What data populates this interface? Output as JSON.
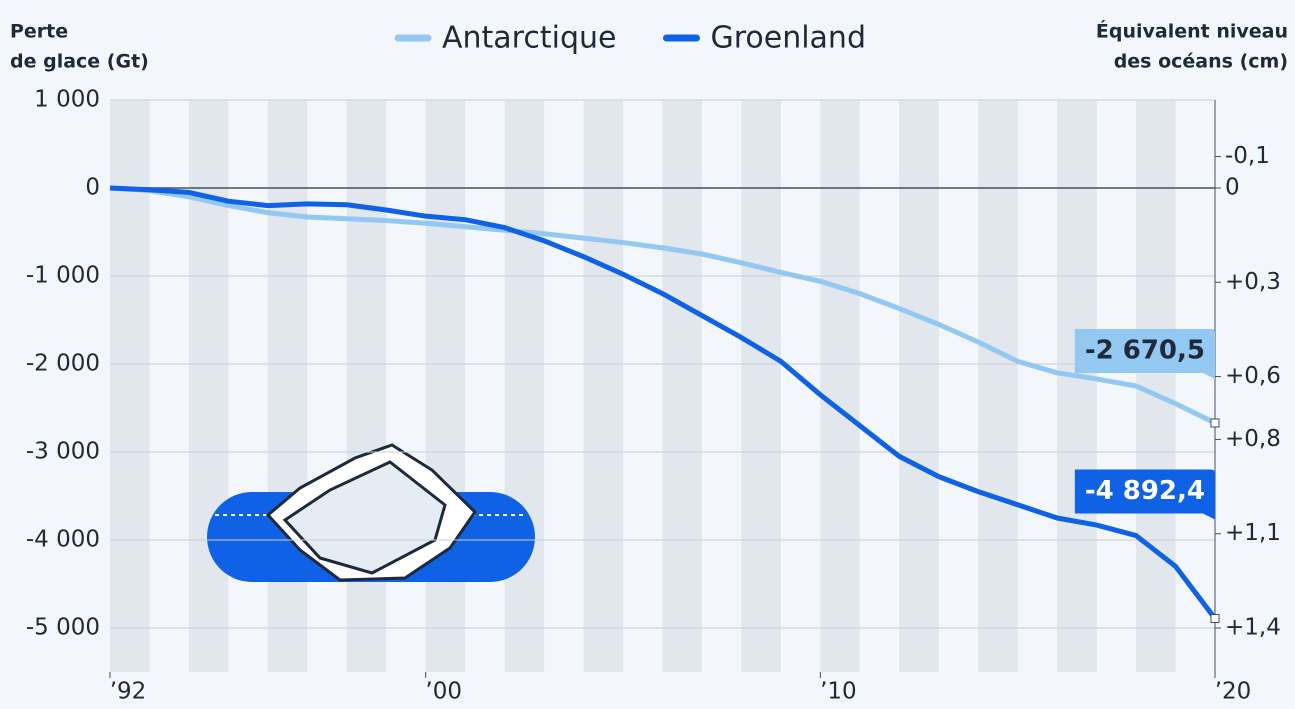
{
  "chart_data": {
    "type": "line",
    "y_axis_title": [
      "Perte",
      "de glace (Gt)"
    ],
    "y2_axis_title": [
      "Équivalent niveau",
      "des océans (cm)"
    ],
    "x": [
      1992,
      1993,
      1994,
      1995,
      1996,
      1997,
      1998,
      1999,
      2000,
      2001,
      2002,
      2003,
      2004,
      2005,
      2006,
      2007,
      2008,
      2009,
      2010,
      2011,
      2012,
      2013,
      2014,
      2015,
      2016,
      2017,
      2018,
      2019,
      2020
    ],
    "series": [
      {
        "name": "Antarctique",
        "color": "#93c8f2",
        "values": [
          0,
          -30,
          -100,
          -200,
          -280,
          -330,
          -350,
          -370,
          -400,
          -440,
          -480,
          -520,
          -570,
          -620,
          -680,
          -750,
          -850,
          -960,
          -1060,
          -1200,
          -1370,
          -1550,
          -1750,
          -1970,
          -2100,
          -2170,
          -2250,
          -2450,
          -2670.5
        ],
        "value_labels": [
          null,
          null,
          null,
          null,
          null,
          null,
          null,
          null,
          null,
          null,
          null,
          null,
          null,
          null,
          null,
          null,
          null,
          null,
          null,
          null,
          null,
          null,
          null,
          null,
          null,
          null,
          null,
          null,
          "-2 670,5"
        ]
      },
      {
        "name": "Groenland",
        "color": "#0f62e6",
        "values": [
          0,
          -20,
          -50,
          -150,
          -200,
          -180,
          -190,
          -250,
          -320,
          -360,
          -450,
          -600,
          -780,
          -980,
          -1200,
          -1450,
          -1700,
          -1970,
          -2350,
          -2700,
          -3050,
          -3280,
          -3450,
          -3600,
          -3750,
          -3830,
          -3950,
          -4300,
          -4892.4
        ],
        "value_labels": [
          null,
          null,
          null,
          null,
          null,
          null,
          null,
          null,
          null,
          null,
          null,
          null,
          null,
          null,
          null,
          null,
          null,
          null,
          null,
          null,
          null,
          null,
          null,
          null,
          null,
          null,
          null,
          null,
          "-4 892,4"
        ]
      }
    ],
    "xlim": [
      1992,
      2020
    ],
    "xticks": [
      {
        "value": 1992,
        "label": "’92"
      },
      {
        "value": 2000,
        "label": "’00"
      },
      {
        "value": 2010,
        "label": "’10"
      },
      {
        "value": 2020,
        "label": "’20"
      }
    ],
    "ylim": [
      -5500,
      1000
    ],
    "yticks": [
      {
        "value": 1000,
        "label": "1 000"
      },
      0,
      {
        "value": -1000,
        "label": "-1 000"
      },
      {
        "value": -2000,
        "label": "-2 000"
      },
      {
        "value": -3000,
        "label": "-3 000"
      },
      {
        "value": -4000,
        "label": "-4 000"
      },
      {
        "value": -5000,
        "label": "-5 000"
      }
    ],
    "y2lim": [
      1.54,
      -0.28
    ],
    "y2ticks": [
      {
        "value": -0.1,
        "label": "-0,1"
      },
      0,
      {
        "value": 0.3,
        "label": "+0,3"
      },
      {
        "value": 0.6,
        "label": "+0,6"
      },
      {
        "value": 0.8,
        "label": "+0,8"
      },
      {
        "value": 1.1,
        "label": "+1,1"
      },
      {
        "value": 1.4,
        "label": "+1,4"
      }
    ],
    "grid": true
  }
}
